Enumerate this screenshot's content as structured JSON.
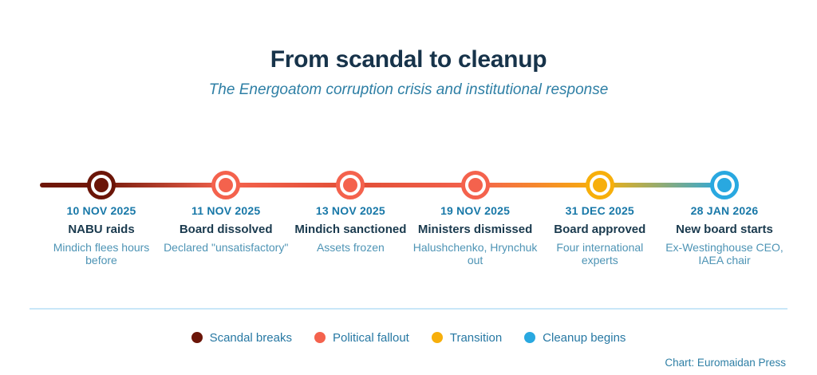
{
  "header": {
    "title": "From scandal to cleanup",
    "subtitle": "The Energoatom corruption crisis and institutional response"
  },
  "chart_data": {
    "type": "timeline",
    "title": "From scandal to cleanup",
    "subtitle": "The Energoatom corruption crisis and institutional response",
    "orientation": "horizontal",
    "line_gradient": [
      "#6E1608",
      "#F4624D",
      "#F7AF0B",
      "#29A8E0"
    ],
    "events": [
      {
        "date": "10 NOV 2025",
        "label": "NABU raids",
        "description": "Mindich flees hours before",
        "category": "Scandal breaks",
        "color": "#6B1508"
      },
      {
        "date": "11 NOV 2025",
        "label": "Board dissolved",
        "description": "Declared \"unsatisfactory\"",
        "category": "Political fallout",
        "color": "#F4624D"
      },
      {
        "date": "13 NOV 2025",
        "label": "Mindich sanctioned",
        "description": "Assets frozen",
        "category": "Political fallout",
        "color": "#F4624D"
      },
      {
        "date": "19 NOV 2025",
        "label": "Ministers dismissed",
        "description": "Halushchenko, Hrynchuk out",
        "category": "Political fallout",
        "color": "#F4624D"
      },
      {
        "date": "31 DEC 2025",
        "label": "Board approved",
        "description": "Four international experts",
        "category": "Transition",
        "color": "#F7AF0B"
      },
      {
        "date": "28 JAN 2026",
        "label": "New board starts",
        "description": "Ex-Westinghouse CEO, IAEA chair",
        "category": "Cleanup begins",
        "color": "#29A8E0"
      }
    ],
    "legend": [
      {
        "label": "Scandal breaks",
        "color": "#6B1508"
      },
      {
        "label": "Political fallout",
        "color": "#F4624D"
      },
      {
        "label": "Transition",
        "color": "#F7AF0B"
      },
      {
        "label": "Cleanup begins",
        "color": "#29A8E0"
      }
    ],
    "legend_position": "bottom",
    "credit": "Chart: Euromaidan Press"
  },
  "footer": {
    "credit": "Chart: Euromaidan Press"
  }
}
